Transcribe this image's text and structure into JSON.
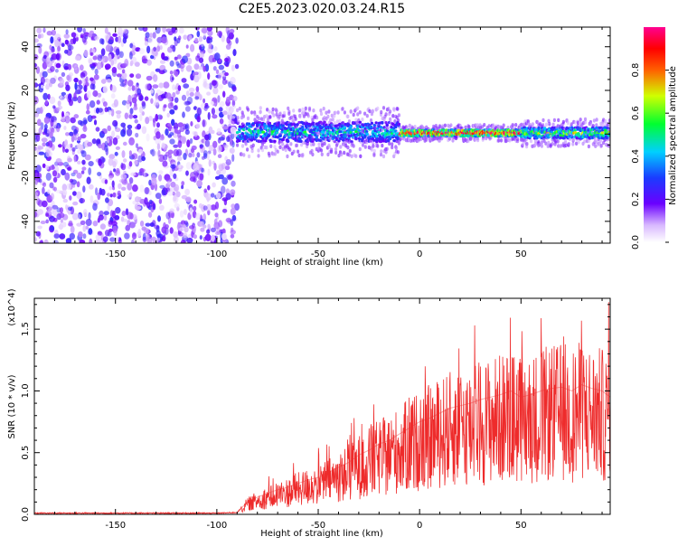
{
  "figure": {
    "title": "C2E5.2023.020.03.24.R15"
  },
  "colors": {
    "snr_line": "#ee2b2b",
    "spectrum_high": "#ff0000",
    "spectrum_low": "#6a00ff"
  },
  "chart_data": [
    {
      "type": "heatmap",
      "xlabel": "Height of straight line (km)",
      "ylabel": "Frequency (Hz)",
      "xlim": [
        -190,
        94
      ],
      "ylim": [
        -50,
        49
      ],
      "xticks": [
        -150,
        -100,
        -50,
        0,
        50
      ],
      "yticks": [
        -40,
        -20,
        0,
        20,
        40
      ],
      "colorbar": {
        "label": "Normalized spectral amplitude",
        "range": [
          0,
          1
        ],
        "ticks": [
          "0.0",
          "0.2",
          "0.4",
          "0.6",
          "0.8"
        ],
        "colormap": "rainbow (violet → blue → cyan → green → yellow → red → magenta)"
      },
      "regions": [
        {
          "x_range": [
            -190,
            -90
          ],
          "freq_range": [
            -50,
            49
          ],
          "description": "broadband noise",
          "amplitude": 0.15
        },
        {
          "x_range": [
            -90,
            -10
          ],
          "freq_center": 1.0,
          "freq_halfwidth": 4.5,
          "amplitude": 0.45
        },
        {
          "x_range": [
            -10,
            50
          ],
          "freq_center": 0.5,
          "freq_halfwidth": 1.5,
          "amplitude": 0.95
        },
        {
          "x_range": [
            50,
            94
          ],
          "freq_center": 0.5,
          "freq_halfwidth": 2.5,
          "amplitude": 0.6
        }
      ]
    },
    {
      "type": "line",
      "xlabel": "Height of straight line (km)",
      "ylabel": "SNR (10 * v/v)",
      "y_multiplier": "(x10^4)",
      "xlim": [
        -190,
        94
      ],
      "ylim": [
        0,
        1.75
      ],
      "xticks": [
        -150,
        -100,
        -50,
        0,
        50
      ],
      "yticks": [
        "0.0",
        "0.5",
        "1.0",
        "1.5"
      ],
      "series": [
        {
          "x": [
            -190,
            -150,
            -100,
            -90,
            -85,
            -80,
            -75,
            -70,
            -65,
            -60,
            -55,
            -50,
            -45,
            -40,
            -35,
            -30,
            -25,
            -20,
            -15,
            -10,
            -5,
            0,
            5,
            10,
            15,
            20,
            25,
            30,
            35,
            40,
            45,
            50,
            55,
            60,
            65,
            70,
            75,
            80,
            85,
            90,
            94
          ],
          "y": [
            0.01,
            0.01,
            0.01,
            0.015,
            0.1,
            0.14,
            0.17,
            0.2,
            0.22,
            0.25,
            0.28,
            0.3,
            0.34,
            0.38,
            0.42,
            0.48,
            0.52,
            0.57,
            0.6,
            0.65,
            0.7,
            0.75,
            0.78,
            0.82,
            0.86,
            0.88,
            0.9,
            0.93,
            0.95,
            0.97,
            1.0,
            0.95,
            0.97,
            1.0,
            1.02,
            1.03,
            1.0,
            1.05,
            1.02,
            1.0,
            0.95
          ]
        }
      ]
    }
  ]
}
